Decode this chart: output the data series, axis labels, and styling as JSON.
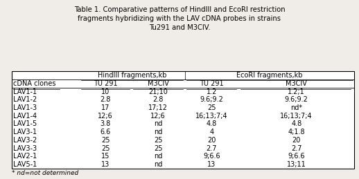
{
  "title": "Table 1. Comparative patterns of HindIII and EcoRI restriction\nfragments hybridizing with the LAV cDNA probes in strains\nTu291 and M3CIV.",
  "col_header1": "HindIII fragments,kb",
  "col_header2": "EcoRI fragments,kb",
  "sub_headers": [
    "cDNA clones",
    "TU 291",
    "M3CIV",
    "TU 291",
    "M3CIV"
  ],
  "rows": [
    [
      "LAV1-1",
      "10",
      "21;10",
      "1.2",
      "1.2;1"
    ],
    [
      "LAV1-2",
      "2.8",
      "2.8",
      "9.6;9.2",
      "9.6;9.2"
    ],
    [
      "LAV1-3",
      "17",
      "17;12",
      "25",
      "nd*"
    ],
    [
      "LAV1-4",
      "12;6",
      "12;6",
      "16;13;7;4",
      "16;13;7;4"
    ],
    [
      "LAV1-5",
      "3.8",
      "nd",
      "4.8",
      "4.8"
    ],
    [
      "LAV3-1",
      "6.6",
      "nd",
      "4",
      "4;1.8"
    ],
    [
      "LAV3-2",
      "25",
      "25",
      "20",
      "20"
    ],
    [
      "LAV3-3",
      "25",
      "25",
      "2.7",
      "2.7"
    ],
    [
      "LAV2-1",
      "15",
      "nd",
      "9;6.6",
      "9;6.6"
    ],
    [
      "LAV5-1",
      "13",
      "nd",
      "13",
      "13;11"
    ]
  ],
  "footnote": "* nd=not determined",
  "bg_color": "#f0ede8",
  "table_bg": "#ffffff",
  "font_size_title": 7.2,
  "font_size_table": 7.0
}
